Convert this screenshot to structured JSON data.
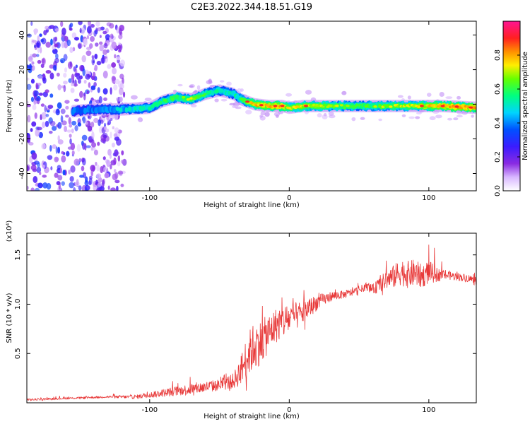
{
  "figure_title": "C2E3.2022.344.18.51.G19",
  "chart_data": [
    {
      "type": "heatmap",
      "title": "C2E3.2022.344.18.51.G19",
      "xlabel": "Height of straight line (km)",
      "ylabel": "Frequency (Hz)",
      "xlim": [
        -188,
        134
      ],
      "ylim": [
        -50,
        48
      ],
      "x_ticks": [
        -100,
        0,
        100
      ],
      "x_tick_labels": [
        "-100",
        "0",
        "100"
      ],
      "y_ticks": [
        -40,
        -20,
        0,
        20,
        40
      ],
      "y_tick_labels": [
        "-40",
        "-20",
        "0",
        "20",
        "40"
      ],
      "colorbar": {
        "label": "Normalized spectral amplitude",
        "range": [
          0.0,
          1.0
        ],
        "ticks": [
          0.0,
          0.2,
          0.4,
          0.6,
          0.8
        ],
        "tick_labels": [
          "0.0",
          "0.2",
          "0.4",
          "0.6",
          "0.8"
        ],
        "colormap": "rainbow (white-violet-blue-cyan-green-yellow-red-magenta)"
      },
      "ridge": {
        "description": "Doppler-shift trace of the signal",
        "x": [
          -155,
          -140,
          -120,
          -100,
          -90,
          -80,
          -70,
          -60,
          -50,
          -40,
          -35,
          -25,
          -15,
          -5,
          0,
          10,
          30,
          50,
          70,
          90,
          110,
          134
        ],
        "y": [
          -4,
          -3,
          -3,
          -2,
          2,
          4,
          3,
          6,
          8,
          6,
          3,
          0,
          -1,
          -1,
          -2,
          -1,
          -1,
          -1,
          -1,
          -1,
          -1,
          -2
        ],
        "amplitude": [
          0.35,
          0.4,
          0.45,
          0.5,
          0.55,
          0.6,
          0.65,
          0.55,
          0.5,
          0.5,
          0.55,
          0.8,
          0.85,
          0.85,
          0.7,
          0.75,
          0.65,
          0.6,
          0.65,
          0.7,
          0.85,
          0.9
        ]
      },
      "noise_region": {
        "x_range": [
          -188,
          -118
        ],
        "y_range": [
          -50,
          48
        ],
        "amplitude": [
          0.05,
          0.35
        ]
      }
    },
    {
      "type": "line",
      "xlabel": "Height of straight line (km)",
      "ylabel": "SNR (10 * v/v)",
      "y_scale_label": "(x10⁴)",
      "xlim": [
        -188,
        134
      ],
      "ylim": [
        0,
        1.72
      ],
      "x_ticks": [
        -100,
        0,
        100
      ],
      "x_tick_labels": [
        "-100",
        "0",
        "100"
      ],
      "y_ticks": [
        0.5,
        1.0,
        1.5
      ],
      "y_tick_labels": [
        "0.5",
        "1.0",
        "1.5"
      ],
      "series": [
        {
          "color": "#e83a3a",
          "x": [
            -188,
            -170,
            -150,
            -130,
            -110,
            -100,
            -90,
            -80,
            -70,
            -60,
            -50,
            -40,
            -35,
            -30,
            -25,
            -20,
            -15,
            -10,
            -5,
            0,
            5,
            10,
            15,
            20,
            25,
            30,
            40,
            50,
            55,
            60,
            65,
            70,
            75,
            80,
            85,
            90,
            95,
            100,
            105,
            110,
            120,
            130,
            134
          ],
          "y": [
            0.03,
            0.04,
            0.05,
            0.06,
            0.06,
            0.08,
            0.1,
            0.12,
            0.14,
            0.16,
            0.18,
            0.22,
            0.32,
            0.48,
            0.58,
            0.62,
            0.7,
            0.78,
            0.82,
            0.85,
            0.88,
            0.92,
            0.97,
            1.02,
            1.05,
            1.08,
            1.1,
            1.14,
            1.18,
            1.15,
            1.2,
            1.25,
            1.28,
            1.33,
            1.3,
            1.32,
            1.28,
            1.33,
            1.3,
            1.3,
            1.28,
            1.26,
            1.22
          ],
          "noise_amplitude": [
            0.01,
            0.01,
            0.01,
            0.01,
            0.02,
            0.03,
            0.04,
            0.05,
            0.06,
            0.06,
            0.06,
            0.08,
            0.15,
            0.22,
            0.25,
            0.22,
            0.2,
            0.18,
            0.18,
            0.16,
            0.14,
            0.12,
            0.1,
            0.08,
            0.06,
            0.05,
            0.04,
            0.04,
            0.04,
            0.05,
            0.08,
            0.1,
            0.12,
            0.14,
            0.14,
            0.14,
            0.12,
            0.12,
            0.08,
            0.05,
            0.04,
            0.04,
            0.04
          ]
        }
      ]
    }
  ]
}
